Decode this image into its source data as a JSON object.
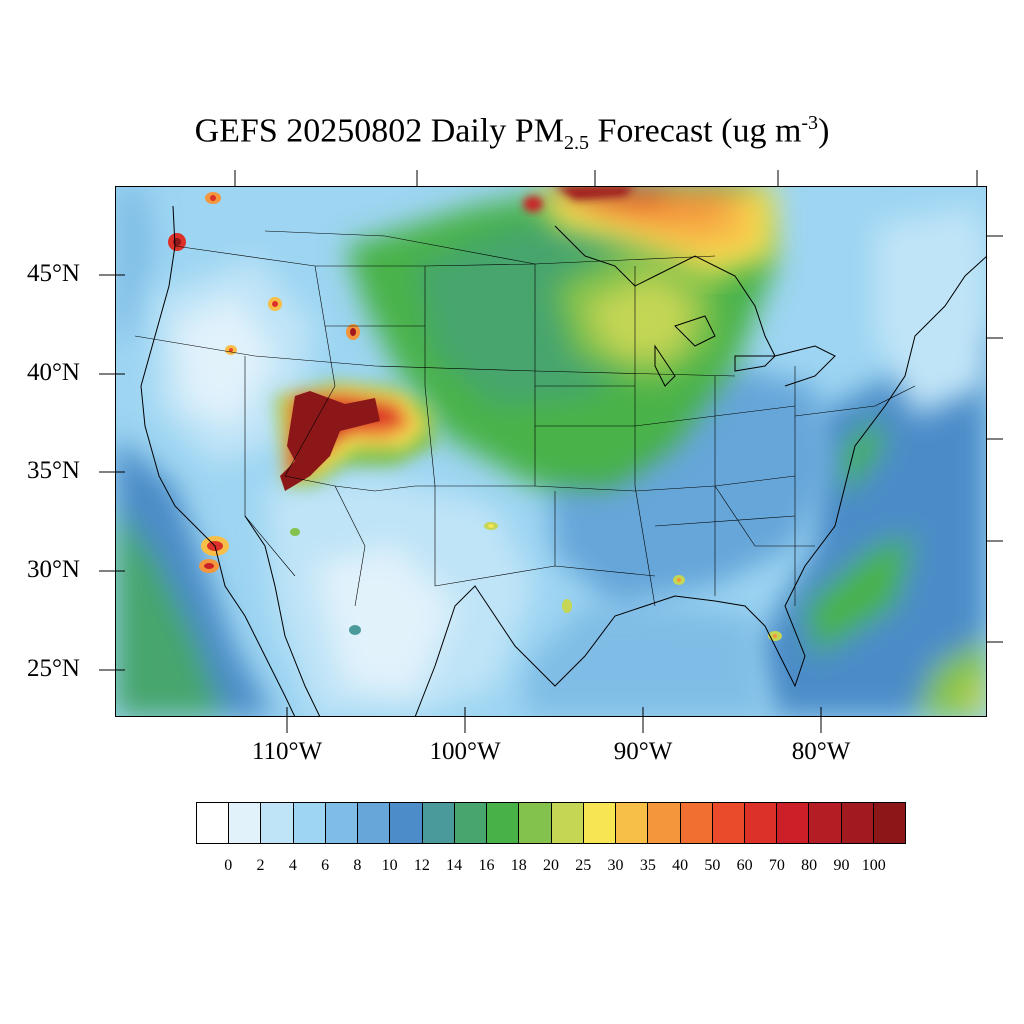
{
  "title": {
    "prefix": "GEFS 20250802 Daily PM",
    "sub": "2.5",
    "middle": " Forecast (ug m",
    "sup": "-3",
    "suffix": ")"
  },
  "map": {
    "lat_labels": [
      "45°N",
      "40°N",
      "35°N",
      "30°N",
      "25°N"
    ],
    "lon_labels": [
      "110°W",
      "100°W",
      "90°W",
      "80°W"
    ]
  },
  "colorbar": {
    "levels": [
      "0",
      "2",
      "4",
      "6",
      "8",
      "10",
      "12",
      "14",
      "16",
      "18",
      "20",
      "25",
      "30",
      "35",
      "40",
      "50",
      "60",
      "70",
      "80",
      "90",
      "100"
    ],
    "colors": [
      "#ffffff",
      "#e1f2fb",
      "#bfe4f7",
      "#9dd5f2",
      "#80bde6",
      "#66a6d9",
      "#4c8cc8",
      "#4a9a9b",
      "#47a56d",
      "#48b248",
      "#83c24c",
      "#c5d654",
      "#f7e553",
      "#f7be48",
      "#f4973c",
      "#f06f31",
      "#e94b2b",
      "#dc3128",
      "#cb2027",
      "#b51d24",
      "#a01a1f",
      "#8c1718"
    ]
  }
}
